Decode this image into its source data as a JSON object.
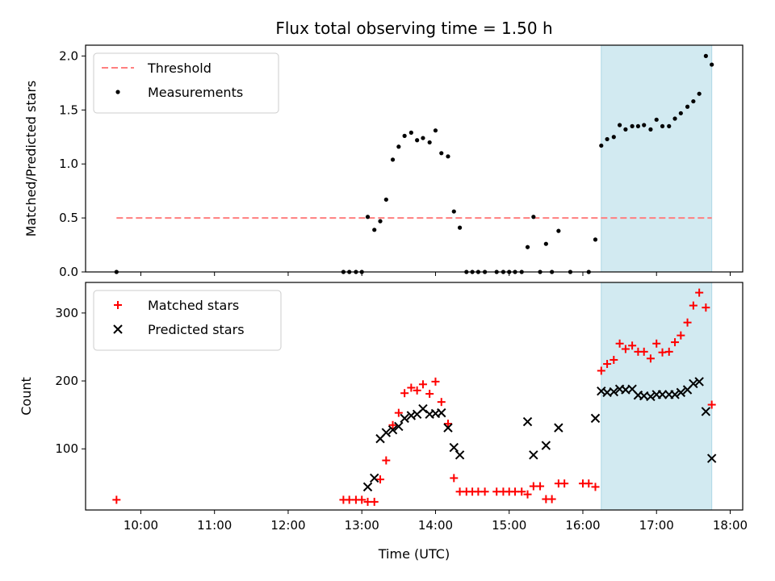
{
  "chart_data": {
    "title": "Flux total observing time = 1.50 h",
    "xlabel": "Time (UTC)",
    "x_axis": {
      "range_hours": [
        9.25,
        18.17
      ],
      "tick_hours": [
        10,
        11,
        12,
        13,
        14,
        15,
        16,
        17,
        18
      ],
      "tick_labels": [
        "10:00",
        "11:00",
        "12:00",
        "13:00",
        "14:00",
        "15:00",
        "16:00",
        "17:00",
        "18:00"
      ]
    },
    "highlight_span_hours": [
      16.25,
      17.75
    ],
    "highlight_color": "#add8e6",
    "panels": [
      {
        "id": "ratio",
        "type": "scatter",
        "ylabel": "Matched/Predicted stars",
        "ylim": [
          0,
          2.1
        ],
        "yticks": [
          0,
          0.5,
          1.0,
          1.5,
          2.0
        ],
        "ytick_labels": [
          "0.0",
          "0.5",
          "1.0",
          "1.5",
          "2.0"
        ],
        "legend_position": "top-left",
        "threshold": {
          "name": "Threshold",
          "value": 0.5,
          "x_range": [
            9.67,
            17.75
          ],
          "color": "#ff7f7f"
        },
        "series": [
          {
            "name": "Measurements",
            "marker": "dot",
            "color": "#000000",
            "points": [
              [
                9.67,
                0
              ],
              [
                12.75,
                0
              ],
              [
                12.83,
                0
              ],
              [
                12.92,
                0
              ],
              [
                13.0,
                0
              ],
              [
                13.08,
                0.51
              ],
              [
                13.17,
                0.39
              ],
              [
                13.25,
                0.47
              ],
              [
                13.33,
                0.67
              ],
              [
                13.42,
                1.04
              ],
              [
                13.5,
                1.16
              ],
              [
                13.58,
                1.26
              ],
              [
                13.67,
                1.29
              ],
              [
                13.75,
                1.22
              ],
              [
                13.83,
                1.24
              ],
              [
                13.92,
                1.2
              ],
              [
                14.0,
                1.31
              ],
              [
                14.08,
                1.1
              ],
              [
                14.17,
                1.07
              ],
              [
                14.25,
                0.56
              ],
              [
                14.33,
                0.41
              ],
              [
                14.42,
                0
              ],
              [
                14.5,
                0
              ],
              [
                14.58,
                0
              ],
              [
                14.67,
                0
              ],
              [
                14.83,
                0
              ],
              [
                14.92,
                0
              ],
              [
                15.0,
                0
              ],
              [
                15.08,
                0
              ],
              [
                15.17,
                0
              ],
              [
                15.25,
                0.23
              ],
              [
                15.33,
                0.51
              ],
              [
                15.42,
                0
              ],
              [
                15.5,
                0.26
              ],
              [
                15.58,
                0
              ],
              [
                15.67,
                0.38
              ],
              [
                15.83,
                0
              ],
              [
                16.08,
                0
              ],
              [
                16.17,
                0.3
              ],
              [
                16.25,
                1.17
              ],
              [
                16.33,
                1.23
              ],
              [
                16.42,
                1.25
              ],
              [
                16.5,
                1.36
              ],
              [
                16.58,
                1.32
              ],
              [
                16.67,
                1.35
              ],
              [
                16.75,
                1.35
              ],
              [
                16.83,
                1.36
              ],
              [
                16.92,
                1.32
              ],
              [
                17.0,
                1.41
              ],
              [
                17.08,
                1.35
              ],
              [
                17.17,
                1.35
              ],
              [
                17.25,
                1.42
              ],
              [
                17.33,
                1.47
              ],
              [
                17.42,
                1.53
              ],
              [
                17.5,
                1.58
              ],
              [
                17.58,
                1.65
              ],
              [
                17.67,
                2.0
              ],
              [
                17.75,
                1.92
              ]
            ]
          }
        ]
      },
      {
        "id": "count",
        "type": "scatter",
        "ylabel": "Count",
        "ylim": [
          10,
          345
        ],
        "yticks": [
          100,
          200,
          300
        ],
        "ytick_labels": [
          "100",
          "200",
          "300"
        ],
        "legend_position": "top-left",
        "series": [
          {
            "name": "Matched stars",
            "marker": "plus",
            "color": "#ff0000",
            "points": [
              [
                9.67,
                25
              ],
              [
                12.75,
                25
              ],
              [
                12.83,
                25
              ],
              [
                12.92,
                25
              ],
              [
                13.0,
                25
              ],
              [
                13.08,
                22
              ],
              [
                13.17,
                22
              ],
              [
                13.25,
                55
              ],
              [
                13.33,
                83
              ],
              [
                13.42,
                135
              ],
              [
                13.5,
                153
              ],
              [
                13.58,
                182
              ],
              [
                13.67,
                190
              ],
              [
                13.75,
                186
              ],
              [
                13.83,
                195
              ],
              [
                13.92,
                181
              ],
              [
                14.0,
                199
              ],
              [
                14.08,
                169
              ],
              [
                14.17,
                137
              ],
              [
                14.25,
                57
              ],
              [
                14.33,
                37
              ],
              [
                14.42,
                37
              ],
              [
                14.5,
                37
              ],
              [
                14.58,
                37
              ],
              [
                14.67,
                37
              ],
              [
                14.83,
                37
              ],
              [
                14.92,
                37
              ],
              [
                15.0,
                37
              ],
              [
                15.08,
                37
              ],
              [
                15.17,
                37
              ],
              [
                15.25,
                33
              ],
              [
                15.33,
                45
              ],
              [
                15.42,
                45
              ],
              [
                15.5,
                26
              ],
              [
                15.58,
                26
              ],
              [
                15.67,
                49
              ],
              [
                15.75,
                49
              ],
              [
                16.0,
                49
              ],
              [
                16.08,
                49
              ],
              [
                16.17,
                44
              ],
              [
                16.25,
                215
              ],
              [
                16.33,
                225
              ],
              [
                16.42,
                231
              ],
              [
                16.5,
                255
              ],
              [
                16.58,
                247
              ],
              [
                16.67,
                252
              ],
              [
                16.75,
                243
              ],
              [
                16.83,
                243
              ],
              [
                16.92,
                233
              ],
              [
                17.0,
                255
              ],
              [
                17.08,
                242
              ],
              [
                17.17,
                243
              ],
              [
                17.25,
                257
              ],
              [
                17.33,
                267
              ],
              [
                17.42,
                286
              ],
              [
                17.5,
                311
              ],
              [
                17.58,
                330
              ],
              [
                17.67,
                308
              ],
              [
                17.75,
                165
              ]
            ]
          },
          {
            "name": "Predicted stars",
            "marker": "x",
            "color": "#000000",
            "points": [
              [
                13.08,
                44
              ],
              [
                13.17,
                57
              ],
              [
                13.25,
                115
              ],
              [
                13.33,
                124
              ],
              [
                13.42,
                128
              ],
              [
                13.5,
                133
              ],
              [
                13.58,
                145
              ],
              [
                13.67,
                149
              ],
              [
                13.75,
                151
              ],
              [
                13.83,
                159
              ],
              [
                13.92,
                151
              ],
              [
                14.0,
                152
              ],
              [
                14.08,
                153
              ],
              [
                14.17,
                131
              ],
              [
                14.25,
                102
              ],
              [
                14.33,
                91
              ],
              [
                15.25,
                140
              ],
              [
                15.33,
                91
              ],
              [
                15.5,
                105
              ],
              [
                15.67,
                131
              ],
              [
                16.17,
                145
              ],
              [
                16.25,
                185
              ],
              [
                16.33,
                183
              ],
              [
                16.42,
                184
              ],
              [
                16.5,
                188
              ],
              [
                16.58,
                187
              ],
              [
                16.67,
                188
              ],
              [
                16.75,
                179
              ],
              [
                16.83,
                178
              ],
              [
                16.92,
                177
              ],
              [
                17.0,
                180
              ],
              [
                17.08,
                180
              ],
              [
                17.17,
                180
              ],
              [
                17.25,
                180
              ],
              [
                17.33,
                183
              ],
              [
                17.42,
                187
              ],
              [
                17.5,
                196
              ],
              [
                17.58,
                199
              ],
              [
                17.67,
                155
              ],
              [
                17.75,
                86
              ]
            ]
          }
        ]
      }
    ]
  }
}
